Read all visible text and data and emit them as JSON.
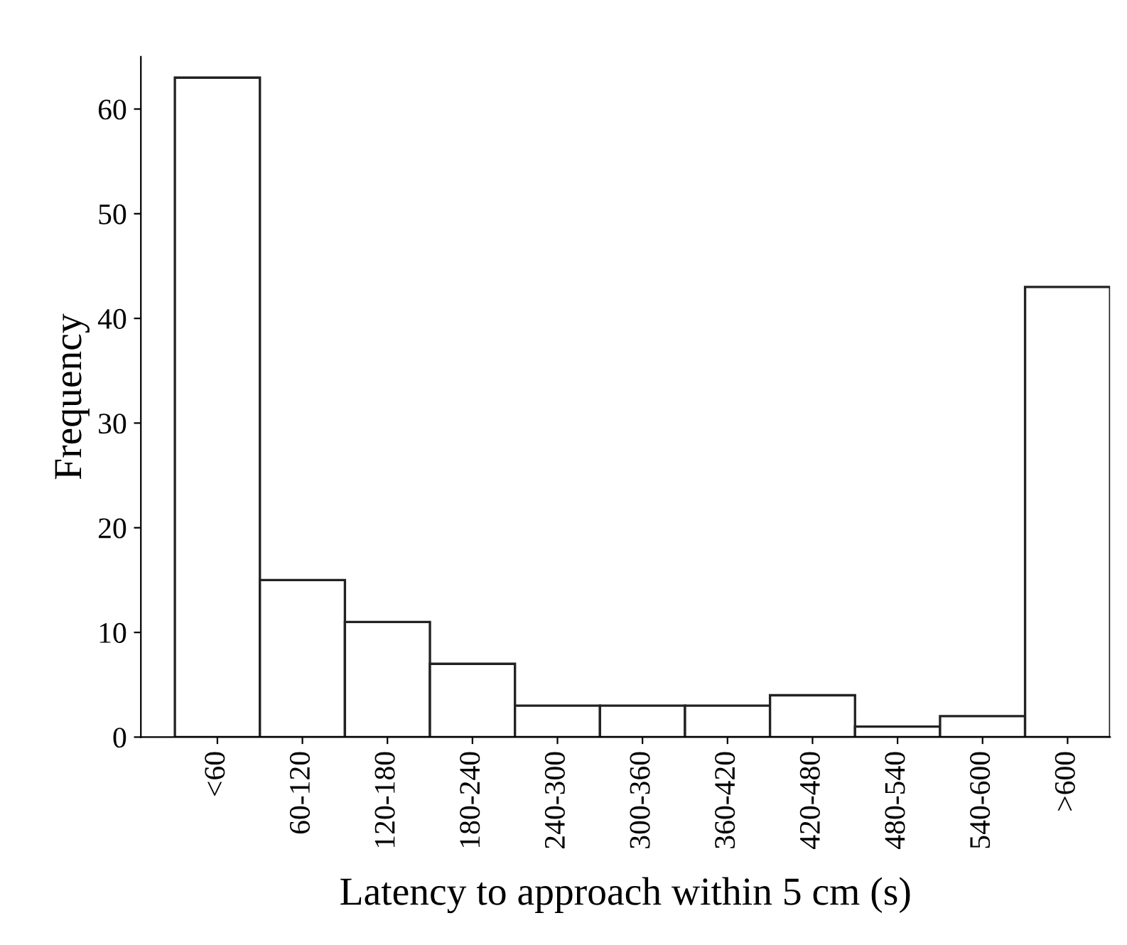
{
  "chart_data": {
    "type": "bar",
    "xlabel": "Latency to approach within 5 cm (s)",
    "ylabel": "Frequency",
    "categories": [
      "<60",
      "60-120",
      "120-180",
      "180-240",
      "240-300",
      "300-360",
      "360-420",
      "420-480",
      "480-540",
      "540-600",
      ">600"
    ],
    "values": [
      63,
      15,
      11,
      7,
      3,
      3,
      3,
      4,
      1,
      2,
      43
    ],
    "color": "#ffffff",
    "ylim": [
      0,
      65
    ],
    "yticks": [
      0,
      10,
      20,
      30,
      40,
      50,
      60
    ],
    "grid": false,
    "legend": false
  }
}
